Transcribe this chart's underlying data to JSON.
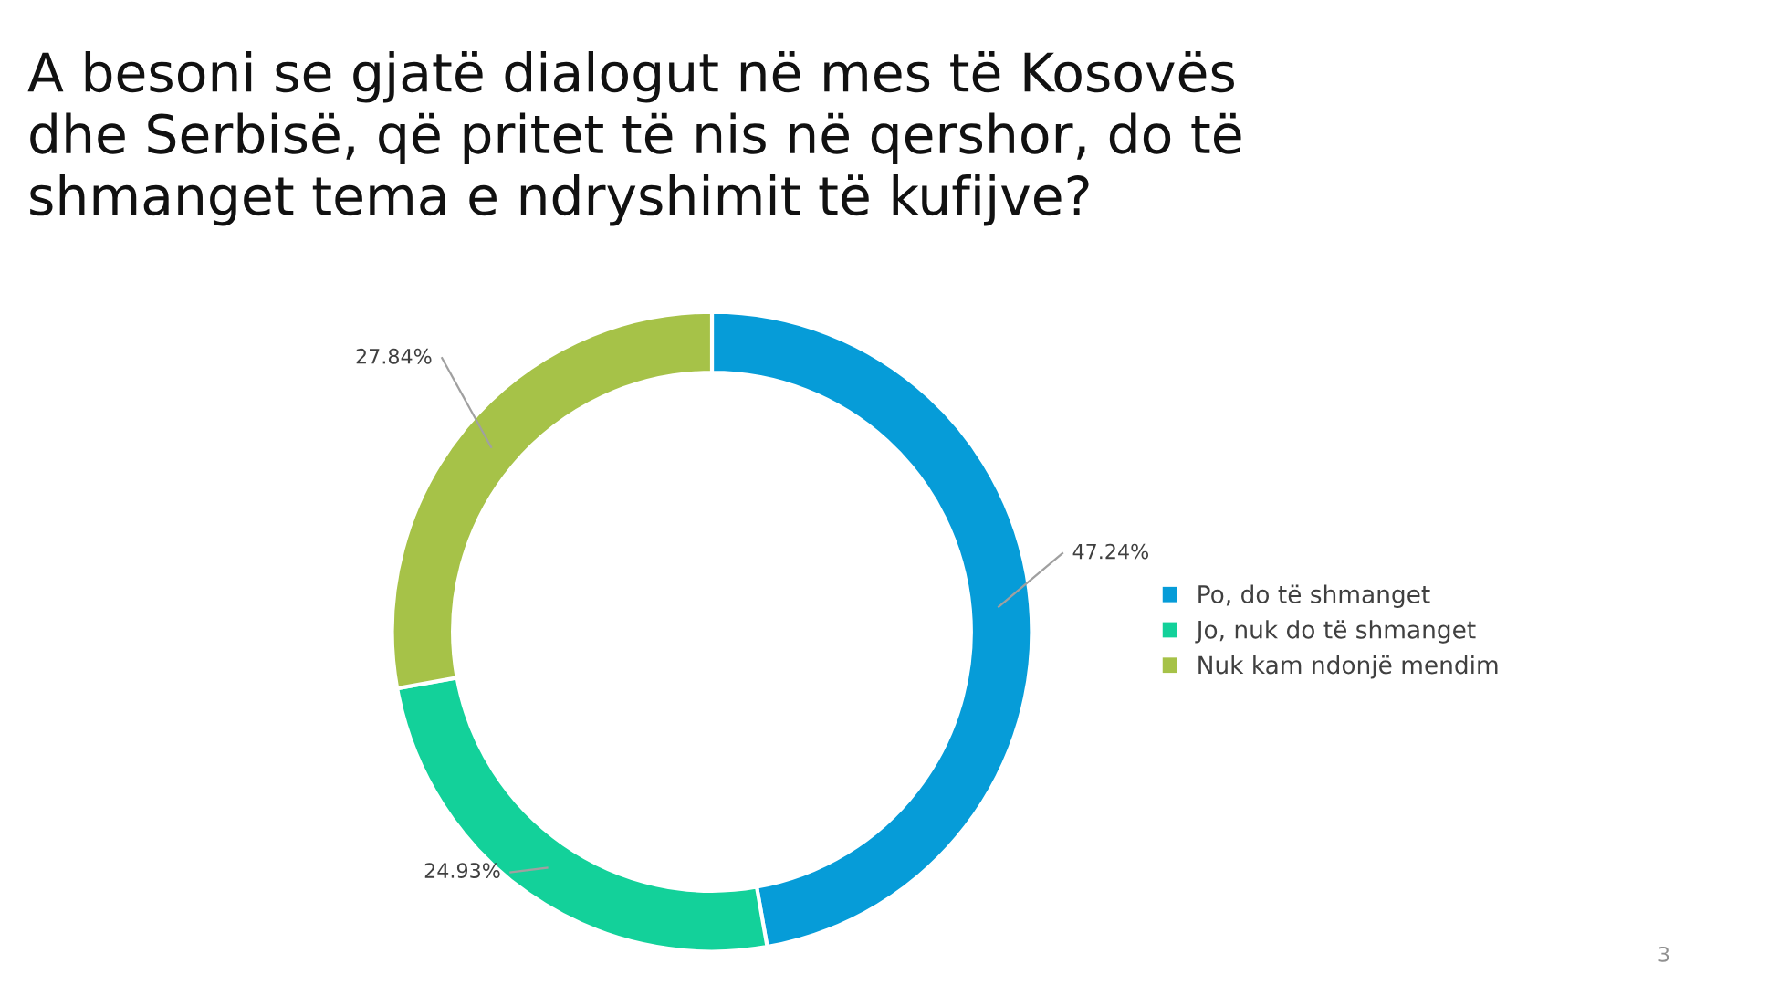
{
  "chart_data": {
    "type": "donut",
    "title": "A besoni se gjatë dialogut në mes të Kosovës\ndhe Serbisë, që pritet të nis në qershor, do të\nshmanget tema e ndryshimit të kufijve?",
    "categories": [
      "Po, do të shmanget",
      "Jo, nuk do të shmanget",
      "Nuk kam ndonjë mendim"
    ],
    "values": [
      47.24,
      24.93,
      27.84
    ],
    "colors": [
      "#069cd8",
      "#13d19a",
      "#a6c248"
    ],
    "value_labels": [
      "47.24%",
      "24.93%",
      "27.84%"
    ],
    "legend": "right",
    "annotations": [
      "3"
    ]
  }
}
